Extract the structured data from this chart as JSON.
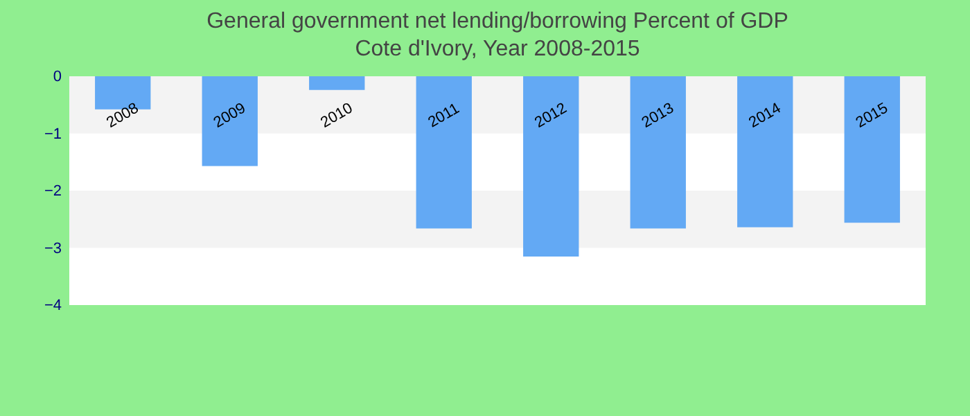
{
  "chart_data": {
    "type": "bar",
    "title": "General government net lending/borrowing  Percent of GDP",
    "subtitle": "Cote d'Ivory, Year 2008-2015",
    "categories": [
      "2008",
      "2009",
      "2010",
      "2011",
      "2012",
      "2013",
      "2014",
      "2015"
    ],
    "values": [
      -0.58,
      -1.57,
      -0.24,
      -2.66,
      -3.15,
      -2.66,
      -2.64,
      -2.56
    ],
    "color": "#63a9f4",
    "ylim": [
      -4,
      0
    ],
    "yticks": [
      0,
      -1,
      -2,
      -3,
      -4
    ],
    "bands": [
      {
        "axis": "y",
        "from": 0,
        "to": -1,
        "color": "#f3f3f3"
      },
      {
        "axis": "y",
        "from": -2,
        "to": -3,
        "color": "#f3f3f3"
      }
    ]
  }
}
